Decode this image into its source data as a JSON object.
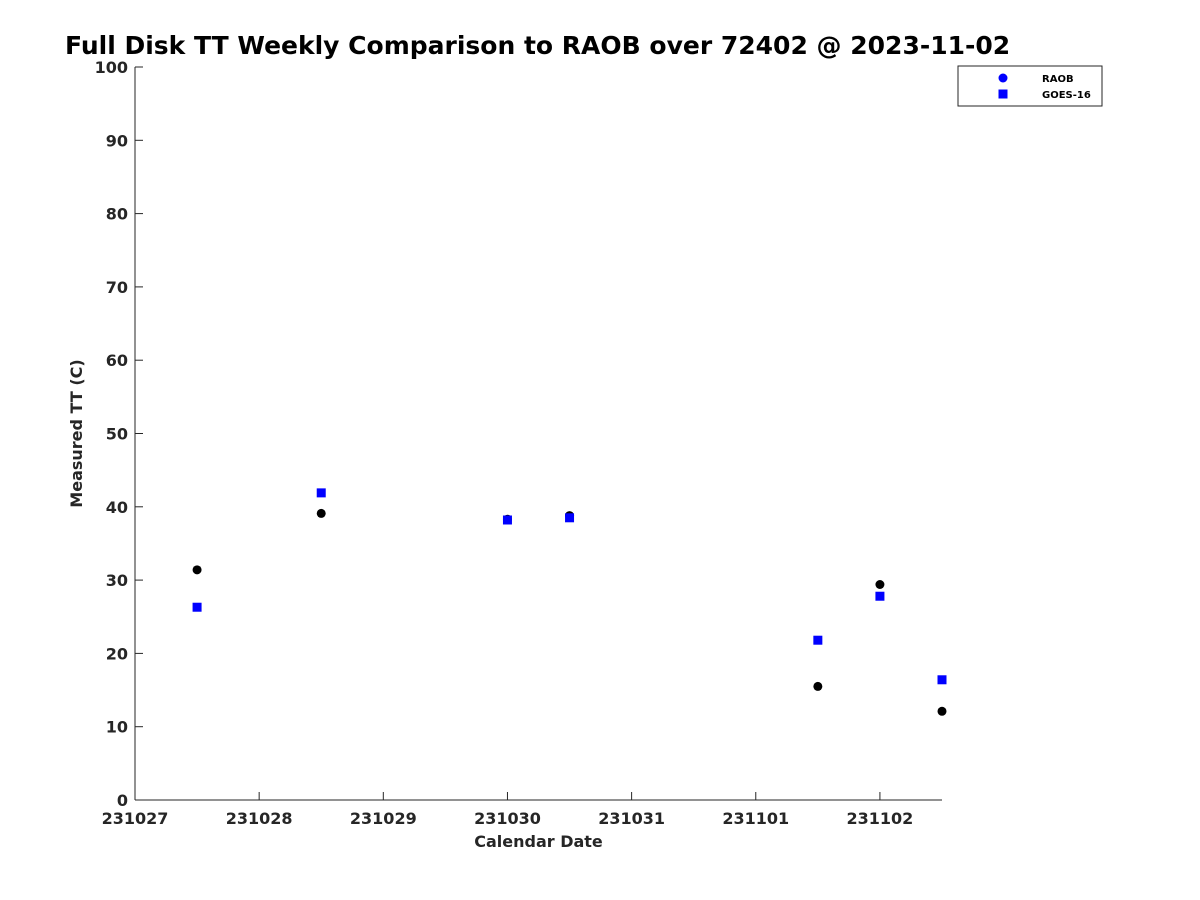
{
  "chart_data": {
    "type": "scatter",
    "title": "Full Disk TT Weekly Comparison to RAOB over 72402 @ 2023-11-02",
    "xlabel": "Calendar Date",
    "ylabel": "Measured TT (C)",
    "xlim": [
      "231027",
      "231102.5"
    ],
    "ylim": [
      0,
      100
    ],
    "x_tick_labels": [
      "231027",
      "231028",
      "231029",
      "231030",
      "231031",
      "231101",
      "231102"
    ],
    "y_ticks": [
      0,
      10,
      20,
      30,
      40,
      50,
      60,
      70,
      80,
      90,
      100
    ],
    "grid": false,
    "legend_position": "top-right",
    "series": [
      {
        "name": "RAOB",
        "marker": "circle",
        "color": "#000000",
        "legend_color": "#0000ff",
        "points": [
          {
            "x": "231027 12Z",
            "y": 31.4
          },
          {
            "x": "231028 12Z",
            "y": 39.1
          },
          {
            "x": "231030 00Z",
            "y": 38.3
          },
          {
            "x": "231030 12Z",
            "y": 38.8
          },
          {
            "x": "231101 12Z",
            "y": 15.5
          },
          {
            "x": "231102 00Z",
            "y": 29.4
          },
          {
            "x": "231102 12Z",
            "y": 12.1
          }
        ]
      },
      {
        "name": "GOES-16",
        "marker": "square",
        "color": "#0000ff",
        "points": [
          {
            "x": "231027 12Z",
            "y": 26.3
          },
          {
            "x": "231028 12Z",
            "y": 41.9
          },
          {
            "x": "231030 00Z",
            "y": 38.2
          },
          {
            "x": "231030 12Z",
            "y": 38.5
          },
          {
            "x": "231101 12Z",
            "y": 21.8
          },
          {
            "x": "231102 00Z",
            "y": 27.8
          },
          {
            "x": "231102 12Z",
            "y": 16.4
          }
        ]
      }
    ]
  }
}
